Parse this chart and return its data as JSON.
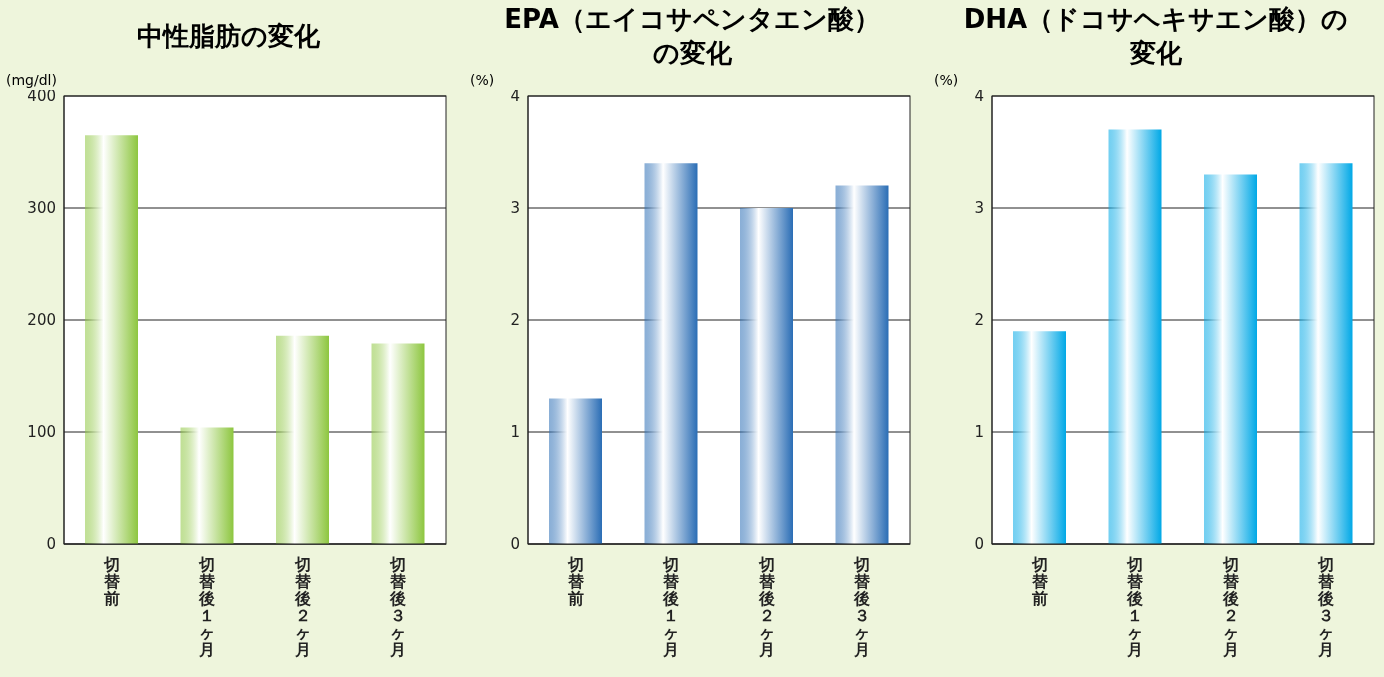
{
  "chart_data": [
    {
      "type": "bar",
      "title": "中性脂肪の変化",
      "ylabel": "(mg/dl)",
      "categories": [
        "切替前",
        "切替後１ヶ月",
        "切替後２ヶ月",
        "切替後３ヶ月"
      ],
      "values": [
        365,
        104,
        186,
        179
      ],
      "color": "#8dc63f",
      "ylim": [
        0,
        400
      ],
      "yticks": [
        0,
        100,
        200,
        300,
        400
      ],
      "grid": "y"
    },
    {
      "type": "bar",
      "title": "EPA（エイコサペンタエン酸）の変化",
      "ylabel": "(%)",
      "categories": [
        "切替前",
        "切替後１ヶ月",
        "切替後２ヶ月",
        "切替後３ヶ月"
      ],
      "values": [
        1.3,
        3.4,
        3.0,
        3.2
      ],
      "color": "#2a6db5",
      "ylim": [
        0,
        4
      ],
      "yticks": [
        0,
        1,
        2,
        3,
        4
      ],
      "grid": "y"
    },
    {
      "type": "bar",
      "title": "DHA（ドコサヘキサエン酸）の変化",
      "ylabel": "(%)",
      "categories": [
        "切替前",
        "切替後１ヶ月",
        "切替後２ヶ月",
        "切替後３ヶ月"
      ],
      "values": [
        1.9,
        3.7,
        3.3,
        3.4
      ],
      "color": "#00a8e6",
      "ylim": [
        0,
        4
      ],
      "yticks": [
        0,
        1,
        2,
        3,
        4
      ],
      "grid": "y"
    }
  ]
}
